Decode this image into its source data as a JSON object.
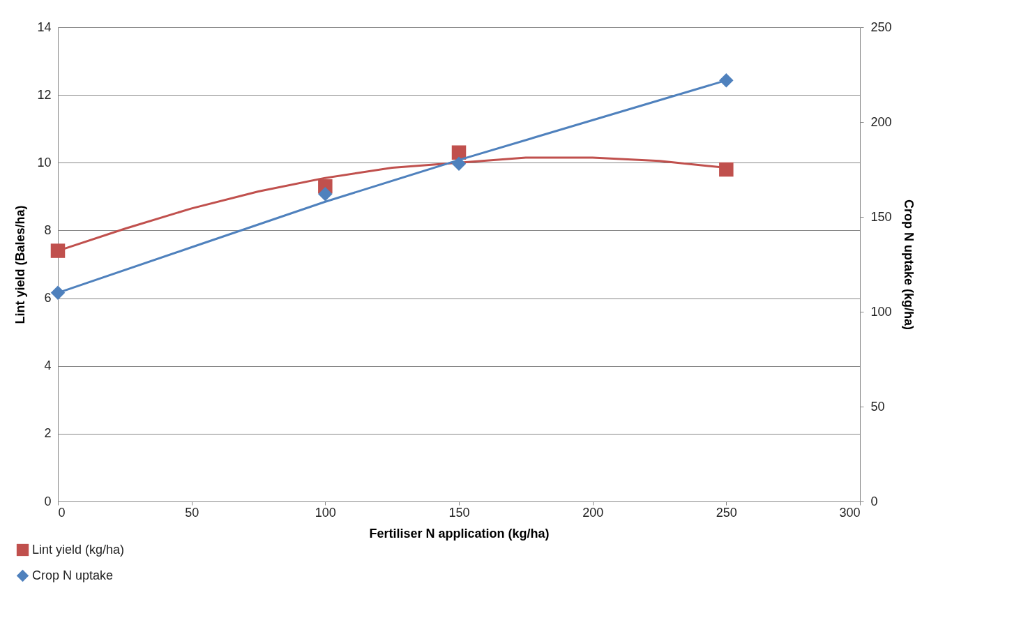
{
  "chart_data": {
    "type": "scatter",
    "xlabel": "Fertiliser N application  (kg/ha)",
    "ylabel": "Lint yield (Bales/ha)",
    "y2label": "Crop N uptake (kg/ha)",
    "xlim": [
      0,
      300
    ],
    "xticks": [
      0,
      50,
      100,
      150,
      200,
      250,
      300
    ],
    "ylim": [
      0,
      14
    ],
    "yticks": [
      0,
      2,
      4,
      6,
      8,
      10,
      12,
      14
    ],
    "y2lim": [
      0,
      250
    ],
    "y2ticks": [
      0,
      50,
      100,
      150,
      200,
      250
    ],
    "grid": "y",
    "legend": "bottom left",
    "series": [
      {
        "name": "Lint yield (kg/ha)",
        "marker": "square",
        "color": "#c0504d",
        "x": [
          0,
          100,
          150,
          250
        ],
        "values": [
          7.4,
          9.3,
          10.3,
          9.8
        ]
      },
      {
        "type": "line",
        "color": "#c0504d",
        "x": [
          0,
          25,
          50,
          75,
          100,
          125,
          175,
          200,
          225,
          250
        ],
        "values": [
          7.4,
          8.05,
          8.65,
          9.15,
          9.55,
          9.85,
          10.15,
          10.15,
          10.05,
          9.85
        ]
      },
      {
        "name": "Crop N uptake",
        "marker": "diamond",
        "axis": "y2",
        "color": "#4f81bd",
        "x": [
          0,
          100,
          150,
          250
        ],
        "values": [
          110,
          162,
          178,
          222
        ]
      },
      {
        "type": "line",
        "axis": "y2",
        "color": "#4f81bd",
        "x": [
          0,
          50,
          100,
          150,
          200,
          250
        ],
        "values": [
          110,
          134,
          158,
          180,
          201,
          222
        ]
      }
    ]
  }
}
